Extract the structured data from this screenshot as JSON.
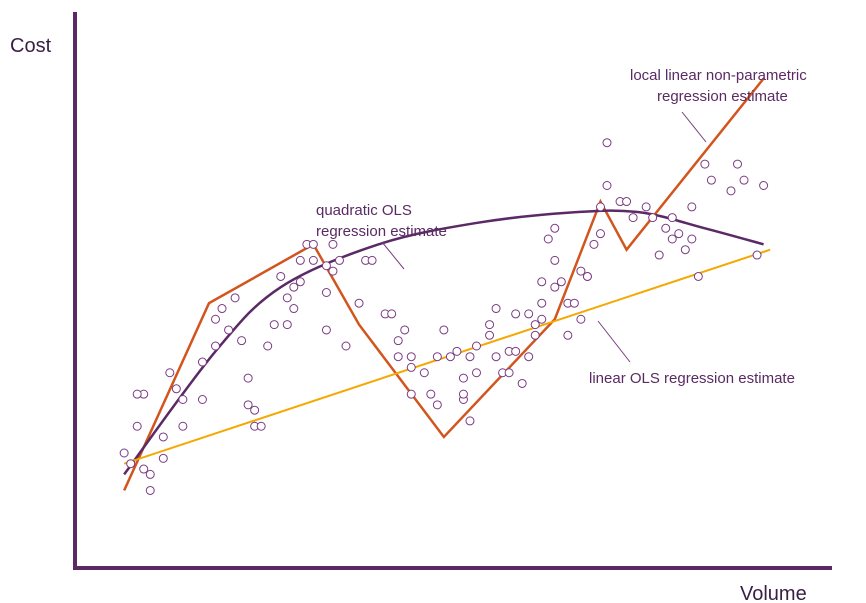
{
  "chart_data": {
    "type": "scatter",
    "title": "",
    "xlabel": "Volume",
    "ylabel": "Cost",
    "xlim": [
      0,
      100
    ],
    "ylim": [
      0,
      100
    ],
    "grid": false,
    "ticks": false,
    "colors": {
      "axes": "#5b2a66",
      "points": "#7a3b82",
      "local": "#d2551e",
      "quadratic": "#5b2a66",
      "linear": "#f4a800",
      "pointer": "#7a3b82"
    },
    "points": [
      [
        6,
        20
      ],
      [
        7,
        18
      ],
      [
        8,
        25
      ],
      [
        9,
        31
      ],
      [
        9,
        17
      ],
      [
        10,
        16
      ],
      [
        10,
        13
      ],
      [
        8,
        31
      ],
      [
        12,
        23
      ],
      [
        12,
        19
      ],
      [
        13,
        35
      ],
      [
        14,
        32
      ],
      [
        15,
        30
      ],
      [
        15,
        25
      ],
      [
        18,
        30
      ],
      [
        18,
        37
      ],
      [
        20,
        40
      ],
      [
        20,
        45
      ],
      [
        21,
        47
      ],
      [
        22,
        43
      ],
      [
        23,
        49
      ],
      [
        24,
        41
      ],
      [
        25,
        34
      ],
      [
        25,
        29
      ],
      [
        26,
        28
      ],
      [
        26,
        25
      ],
      [
        27,
        25
      ],
      [
        28,
        40
      ],
      [
        29,
        44
      ],
      [
        30,
        53
      ],
      [
        31,
        49
      ],
      [
        31,
        44
      ],
      [
        32,
        51
      ],
      [
        32,
        47
      ],
      [
        33,
        52
      ],
      [
        33,
        56
      ],
      [
        34,
        59
      ],
      [
        35,
        56
      ],
      [
        35,
        59
      ],
      [
        37,
        55
      ],
      [
        37,
        43
      ],
      [
        37,
        50
      ],
      [
        38,
        54
      ],
      [
        38,
        59
      ],
      [
        39,
        56
      ],
      [
        40,
        40
      ],
      [
        42,
        48
      ],
      [
        43,
        56
      ],
      [
        44,
        56
      ],
      [
        46,
        46
      ],
      [
        47,
        46
      ],
      [
        48,
        41
      ],
      [
        48,
        38
      ],
      [
        49,
        43
      ],
      [
        50,
        38
      ],
      [
        50,
        31
      ],
      [
        50,
        36
      ],
      [
        52,
        35
      ],
      [
        53,
        31
      ],
      [
        54,
        29
      ],
      [
        54,
        38
      ],
      [
        55,
        43
      ],
      [
        56,
        38
      ],
      [
        57,
        39
      ],
      [
        58,
        30
      ],
      [
        58,
        34
      ],
      [
        58,
        31
      ],
      [
        59,
        26
      ],
      [
        59,
        38
      ],
      [
        60,
        35
      ],
      [
        60,
        40
      ],
      [
        62,
        42
      ],
      [
        62,
        44
      ],
      [
        63,
        47
      ],
      [
        63,
        38
      ],
      [
        64,
        35
      ],
      [
        65,
        35
      ],
      [
        65,
        39
      ],
      [
        66,
        39
      ],
      [
        66,
        46
      ],
      [
        67,
        33
      ],
      [
        68,
        38
      ],
      [
        68,
        46
      ],
      [
        69,
        42
      ],
      [
        69,
        44
      ],
      [
        70,
        45
      ],
      [
        70,
        48
      ],
      [
        70,
        52
      ],
      [
        72,
        51
      ],
      [
        72,
        56
      ],
      [
        71,
        60
      ],
      [
        72,
        62
      ],
      [
        73,
        52
      ],
      [
        74,
        48
      ],
      [
        74,
        42
      ],
      [
        75,
        48
      ],
      [
        76,
        45
      ],
      [
        76,
        54
      ],
      [
        77,
        53
      ],
      [
        77,
        53
      ],
      [
        78,
        59
      ],
      [
        79,
        61
      ],
      [
        79,
        66
      ],
      [
        80,
        78
      ],
      [
        80,
        70
      ],
      [
        82,
        67
      ],
      [
        83,
        67
      ],
      [
        84,
        64
      ],
      [
        86,
        66
      ],
      [
        87,
        64
      ],
      [
        88,
        57
      ],
      [
        89,
        62
      ],
      [
        90,
        64
      ],
      [
        90,
        60
      ],
      [
        91,
        61
      ],
      [
        92,
        58
      ],
      [
        93,
        60
      ],
      [
        93,
        66
      ],
      [
        94,
        53
      ],
      [
        95,
        74
      ],
      [
        96,
        71
      ],
      [
        99,
        69
      ],
      [
        100,
        74
      ],
      [
        101,
        71
      ],
      [
        103,
        57
      ],
      [
        104,
        70
      ]
    ],
    "series": [
      {
        "name": "local linear non-parametric regression estimate",
        "values": [
          [
            6,
            13
          ],
          [
            19,
            48
          ],
          [
            35,
            59
          ],
          [
            42,
            44
          ],
          [
            55,
            23
          ],
          [
            72,
            45
          ],
          [
            79,
            67
          ],
          [
            83,
            58
          ],
          [
            104,
            90
          ]
        ]
      },
      {
        "name": "quadratic OLS regression estimate",
        "values": [
          [
            6,
            16
          ],
          [
            20,
            39
          ],
          [
            30,
            51
          ],
          [
            45,
            59
          ],
          [
            60,
            63
          ],
          [
            75,
            65
          ],
          [
            85,
            65
          ],
          [
            95,
            62
          ],
          [
            104,
            59
          ]
        ]
      },
      {
        "name": "linear OLS regression estimate",
        "values": [
          [
            6,
            18
          ],
          [
            105,
            58
          ]
        ]
      }
    ],
    "annotations": [
      {
        "lines": [
          "local linear non-parametric",
          "regression estimate"
        ],
        "series": 0
      },
      {
        "lines": [
          "quadratic OLS",
          "regression estimate"
        ],
        "series": 1
      },
      {
        "lines": [
          "linear OLS regression estimate"
        ],
        "series": 2
      }
    ]
  }
}
